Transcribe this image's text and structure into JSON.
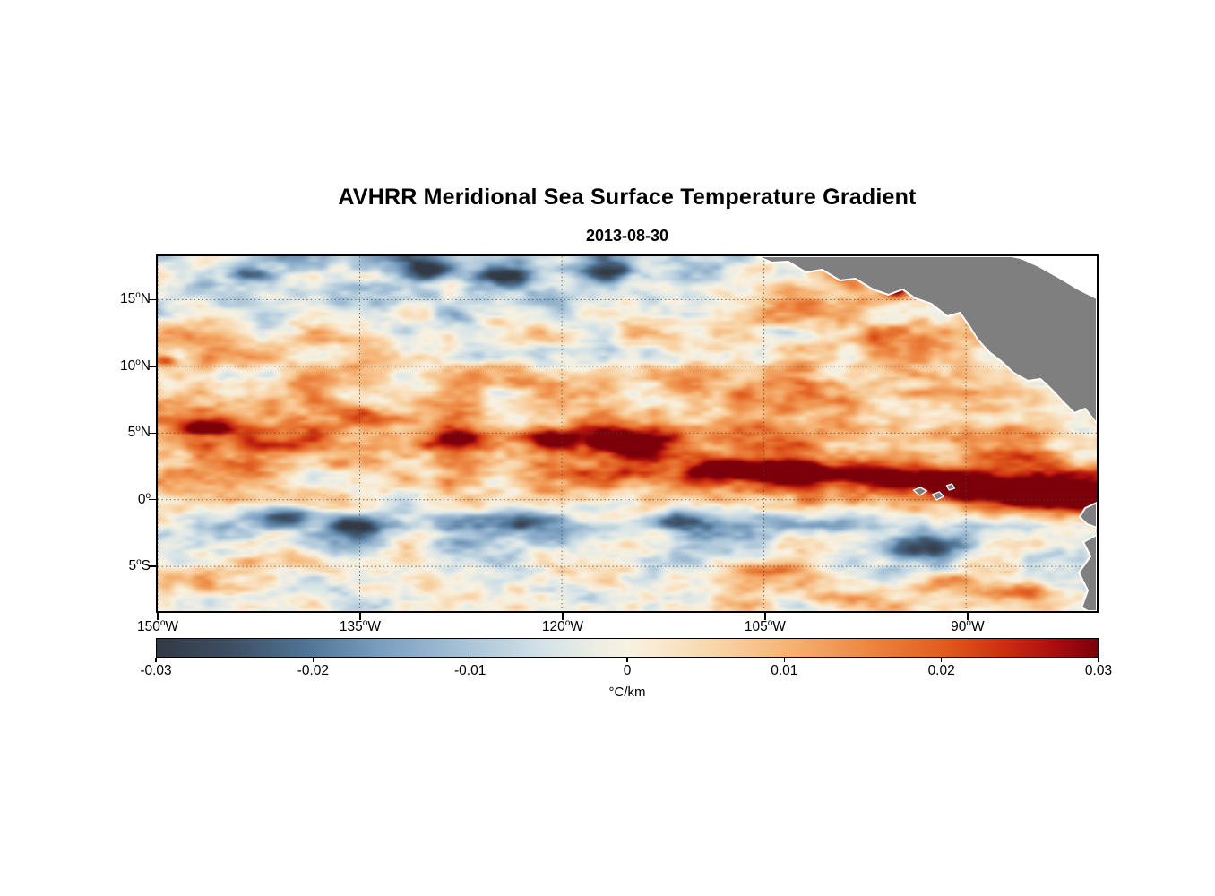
{
  "chart_data": {
    "type": "heatmap",
    "title": "AVHRR Meridional Sea Surface Temperature Gradient",
    "subtitle": "2013-08-30",
    "units": "°C/km",
    "colorbar_range": [
      -0.03,
      0.03
    ],
    "colorbar_ticks": [
      "-0.03",
      "-0.02",
      "-0.01",
      "0",
      "0.01",
      "0.02",
      "0.03"
    ],
    "extent": {
      "lon_min": -150,
      "lon_max": -80.3,
      "lat_min": -8.35,
      "lat_max": 18.25
    },
    "lon_ticks": [
      {
        "value": "150",
        "suffix": "W",
        "lon": -150
      },
      {
        "value": "135",
        "suffix": "W",
        "lon": -135
      },
      {
        "value": "120",
        "suffix": "W",
        "lon": -120
      },
      {
        "value": "105",
        "suffix": "W",
        "lon": -105
      },
      {
        "value": "90",
        "suffix": "W",
        "lon": -90
      }
    ],
    "lat_ticks": [
      {
        "value": "15",
        "suffix": "N",
        "lat": 15
      },
      {
        "value": "10",
        "suffix": "N",
        "lat": 10
      },
      {
        "value": "5",
        "suffix": "N",
        "lat": 5
      },
      {
        "value": "0",
        "suffix": "",
        "lat": 0
      },
      {
        "value": "5",
        "suffix": "S",
        "lat": -5
      }
    ],
    "grid": {
      "scale": 0.001,
      "lons": [
        -150,
        -145,
        -140,
        -135,
        -130,
        -125,
        -120,
        -115,
        -110,
        -105,
        -100,
        -95,
        -90,
        -85,
        -80
      ],
      "lats": [
        18,
        15,
        12,
        9,
        6,
        4,
        2,
        0,
        -2,
        -4,
        -6,
        -8
      ],
      "values": [
        [
          -8,
          -4,
          -10,
          -6,
          -12,
          -14,
          -10,
          -12,
          -6,
          -2,
          3,
          1,
          -1,
          -3,
          -5
        ],
        [
          -2,
          -6,
          2,
          -4,
          -8,
          -3,
          -5,
          -2,
          0,
          4,
          6,
          7,
          4,
          -1,
          -6
        ],
        [
          5,
          7,
          2,
          8,
          3,
          1,
          5,
          2,
          6,
          4,
          8,
          10,
          11,
          5,
          -2
        ],
        [
          8,
          3,
          6,
          2,
          4,
          6,
          3,
          5,
          8,
          6,
          10,
          12,
          9,
          9,
          -6
        ],
        [
          14,
          9,
          8,
          12,
          9,
          11,
          8,
          10,
          12,
          10,
          12,
          10,
          8,
          11,
          9
        ],
        [
          16,
          11,
          14,
          9,
          16,
          18,
          13,
          20,
          15,
          19,
          13,
          11,
          9,
          8,
          6
        ],
        [
          9,
          11,
          6,
          8,
          5,
          10,
          14,
          22,
          18,
          24,
          26,
          23,
          21,
          25,
          27
        ],
        [
          2,
          4,
          2,
          0,
          4,
          2,
          6,
          4,
          8,
          6,
          10,
          9,
          17,
          26,
          30
        ],
        [
          -6,
          -10,
          -8,
          -12,
          -6,
          -10,
          -14,
          -12,
          -8,
          -10,
          -6,
          -12,
          -8,
          -4,
          2
        ],
        [
          -2,
          -4,
          0,
          -6,
          -2,
          -4,
          -8,
          -2,
          -6,
          -4,
          4,
          -6,
          -2,
          4,
          -8
        ],
        [
          2,
          0,
          -2,
          2,
          0,
          -4,
          2,
          0,
          -2,
          4,
          6,
          2,
          8,
          6,
          -4
        ],
        [
          0,
          2,
          0,
          -2,
          2,
          0,
          -2,
          2,
          0,
          2,
          4,
          8,
          4,
          10,
          2
        ]
      ]
    },
    "hotspots": [
      [
        -95.2,
        15.9,
        0.032,
        0.9,
        0.5
      ],
      [
        -85.0,
        0.6,
        0.034,
        4.5,
        1.0
      ],
      [
        -90.5,
        1.2,
        0.03,
        2.5,
        0.8
      ],
      [
        -96.0,
        1.6,
        0.028,
        2.5,
        0.6
      ],
      [
        -103.0,
        2.0,
        0.03,
        3.5,
        0.7
      ],
      [
        -108.0,
        2.5,
        0.026,
        2.5,
        0.6
      ],
      [
        -115.0,
        4.4,
        0.026,
        3.0,
        0.8
      ],
      [
        -120.5,
        4.6,
        0.024,
        2.2,
        0.7
      ],
      [
        -128.0,
        4.6,
        0.022,
        2.5,
        0.8
      ],
      [
        -146.5,
        5.4,
        0.024,
        1.8,
        0.6
      ],
      [
        -149.3,
        10.4,
        0.02,
        1.2,
        0.5
      ],
      [
        -106.0,
        -5.0,
        0.016,
        2.5,
        0.6
      ],
      [
        -86.0,
        -6.8,
        0.018,
        3.0,
        0.7
      ],
      [
        -130.0,
        17.2,
        -0.022,
        2.2,
        0.7
      ],
      [
        -124.0,
        16.8,
        -0.018,
        2.0,
        0.6
      ],
      [
        -143.0,
        17.0,
        -0.02,
        2.0,
        0.6
      ],
      [
        -116.0,
        17.2,
        -0.018,
        1.8,
        0.6
      ],
      [
        -140.0,
        -1.2,
        -0.022,
        2.5,
        0.7
      ],
      [
        -135.0,
        -1.9,
        -0.022,
        2.5,
        0.8
      ],
      [
        -122.0,
        -1.6,
        -0.02,
        2.2,
        0.7
      ],
      [
        -111.5,
        -1.5,
        -0.02,
        2.2,
        0.6
      ],
      [
        -93.0,
        -3.6,
        -0.02,
        3.0,
        0.8
      ],
      [
        -81.0,
        8.6,
        -0.022,
        1.2,
        0.9
      ]
    ],
    "noise": {
      "seed": 19,
      "octaves": [
        [
          0.28,
          0.65,
          0.009
        ],
        [
          0.6,
          1.5,
          0.0055
        ],
        [
          1.3,
          3.1,
          0.003
        ]
      ]
    },
    "colormap": [
      {
        "t": 0.0,
        "c": "#323a45"
      },
      {
        "t": 0.08,
        "c": "#3d4f63"
      },
      {
        "t": 0.16,
        "c": "#4f7496"
      },
      {
        "t": 0.24,
        "c": "#7b9fc0"
      },
      {
        "t": 0.33,
        "c": "#a9c4d8"
      },
      {
        "t": 0.41,
        "c": "#d3e2e7"
      },
      {
        "t": 0.47,
        "c": "#eeeee4"
      },
      {
        "t": 0.5,
        "c": "#f7f2e2"
      },
      {
        "t": 0.53,
        "c": "#f9ead1"
      },
      {
        "t": 0.6,
        "c": "#f8d3a5"
      },
      {
        "t": 0.68,
        "c": "#f5af6e"
      },
      {
        "t": 0.76,
        "c": "#ec8440"
      },
      {
        "t": 0.84,
        "c": "#df5a1d"
      },
      {
        "t": 0.9,
        "c": "#cb2e10"
      },
      {
        "t": 0.95,
        "c": "#ad0f10"
      },
      {
        "t": 1.0,
        "c": "#7c0009"
      }
    ],
    "land": {
      "fill": "#7f7f7f",
      "stroke": "#ffffff",
      "polygons": [
        [
          [
            670,
            0
          ],
          [
            687,
            7
          ],
          [
            705,
            6
          ],
          [
            725,
            18
          ],
          [
            743,
            15
          ],
          [
            763,
            27
          ],
          [
            780,
            25
          ],
          [
            800,
            37
          ],
          [
            817,
            43
          ],
          [
            833,
            37
          ],
          [
            847,
            47
          ],
          [
            865,
            53
          ],
          [
            883,
            67
          ],
          [
            897,
            63
          ],
          [
            907,
            77
          ],
          [
            917,
            93
          ],
          [
            930,
            107
          ],
          [
            943,
            117
          ],
          [
            957,
            130
          ],
          [
            973,
            139
          ],
          [
            987,
            137
          ],
          [
            1000,
            149
          ],
          [
            1013,
            163
          ],
          [
            1025,
            175
          ],
          [
            1037,
            170
          ],
          [
            1047,
            183
          ],
          [
            1050,
            187
          ],
          [
            1050,
            47
          ],
          [
            1030,
            37
          ],
          [
            1010,
            25
          ],
          [
            985,
            11
          ],
          [
            965,
            2
          ],
          [
            955,
            0
          ]
        ],
        [
          [
            1050,
            275
          ],
          [
            1037,
            281
          ],
          [
            1031,
            291
          ],
          [
            1039,
            299
          ],
          [
            1050,
            303
          ]
        ],
        [
          [
            1050,
            311
          ],
          [
            1035,
            319
          ],
          [
            1043,
            335
          ],
          [
            1030,
            353
          ],
          [
            1040,
            373
          ],
          [
            1033,
            392
          ],
          [
            1040,
            396
          ],
          [
            1050,
            396
          ]
        ]
      ],
      "islands": [
        [
          [
            845,
            261
          ],
          [
            853,
            258
          ],
          [
            860,
            262
          ],
          [
            852,
            267
          ]
        ],
        [
          [
            866,
            266
          ],
          [
            874,
            263
          ],
          [
            879,
            268
          ],
          [
            871,
            272
          ]
        ],
        [
          [
            882,
            256
          ],
          [
            888,
            254
          ],
          [
            891,
            259
          ],
          [
            885,
            261
          ]
        ]
      ]
    },
    "ocean_mask_polygons": [
      [
        [
          955,
          0
        ],
        [
          1050,
          0
        ],
        [
          1050,
          47
        ],
        [
          1030,
          37
        ],
        [
          1010,
          25
        ],
        [
          985,
          11
        ]
      ]
    ],
    "grid_lines": {
      "color": "#4a4a4a",
      "style": "dotted"
    }
  }
}
